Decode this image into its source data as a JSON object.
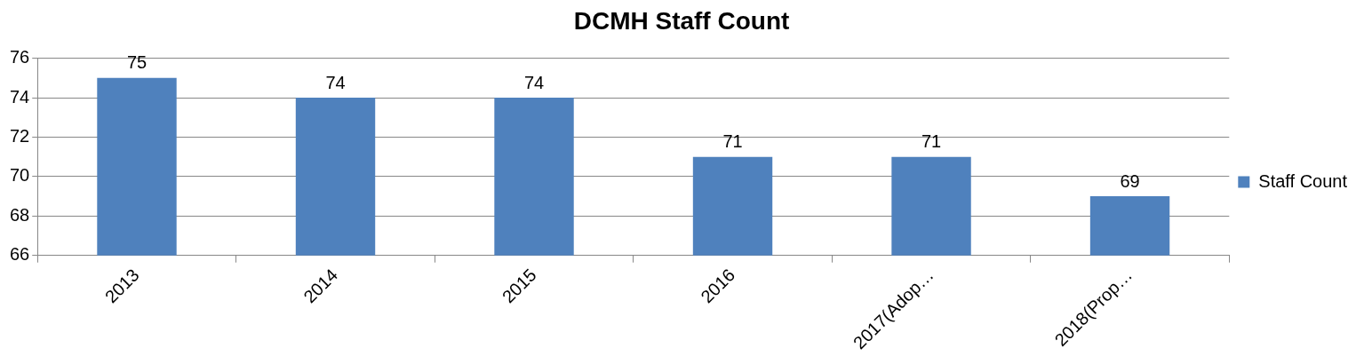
{
  "chart_data": {
    "type": "bar",
    "title": "DCMH Staff Count",
    "categories": [
      "2013",
      "2014",
      "2015",
      "2016",
      "2017(Adop…",
      "2018(Prop…"
    ],
    "series": [
      {
        "name": "Staff Count",
        "color": "#4f81bd",
        "values": [
          75,
          74,
          74,
          71,
          71,
          69
        ]
      }
    ],
    "ylim": [
      66,
      76
    ],
    "yticks": [
      66,
      68,
      70,
      72,
      74,
      76
    ],
    "grid": "y",
    "legend": "right",
    "data_labels": true
  }
}
